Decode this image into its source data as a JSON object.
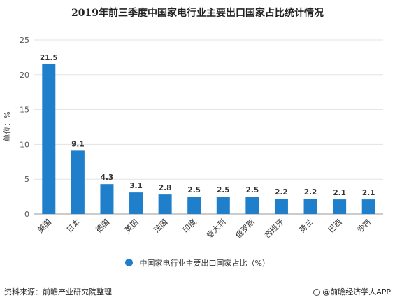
{
  "chart_data": {
    "type": "bar",
    "title": "2019年前三季度中国家电行业主要出口国家占比统计情况",
    "ylabel": "单位：%",
    "ylim": [
      0,
      25
    ],
    "yticks": [
      "0",
      "5",
      "10",
      "15",
      "20",
      "25"
    ],
    "grid": true,
    "legend_position": "bottom",
    "categories": [
      "美国",
      "日本",
      "德国",
      "英国",
      "法国",
      "印度",
      "意大利",
      "俄罗斯",
      "西班牙",
      "荷兰",
      "巴西",
      "沙特"
    ],
    "series": [
      {
        "name": "中国家电行业主要出口国家占比（%）",
        "values": [
          21.5,
          9.1,
          4.3,
          3.1,
          2.8,
          2.5,
          2.5,
          2.5,
          2.2,
          2.2,
          2.1,
          2.1
        ],
        "labels": [
          "21.5",
          "9.1",
          "4.3",
          "3.1",
          "2.8",
          "2.5",
          "2.5",
          "2.5",
          "2.2",
          "2.2",
          "2.1",
          "2.1"
        ]
      }
    ]
  },
  "colors": {
    "bar": "#1f7fcb",
    "grid": "#e3e3e3",
    "axis": "#999999"
  },
  "footer": {
    "source": "资料来源：前瞻产业研究院整理",
    "brand": "@前瞻经济学人APP",
    "brand_icon": "copyright-icon"
  }
}
